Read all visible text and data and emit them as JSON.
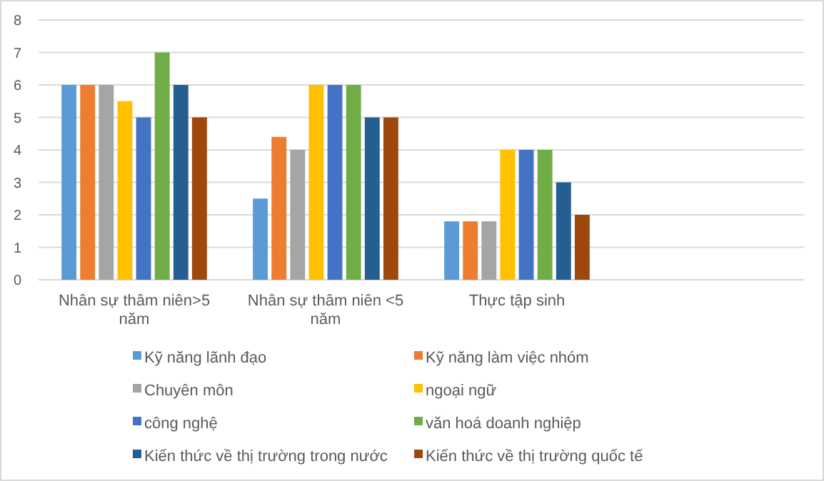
{
  "chart_data": {
    "type": "bar",
    "categories": [
      "Nhân sự thâm niên>5 năm",
      "Nhân sự thâm niên <5 năm",
      "Thực tập sinh",
      null
    ],
    "series": [
      {
        "name": "Kỹ năng lãnh đạo",
        "color": "#5b9bd5",
        "values": [
          6,
          2.5,
          1.8,
          null
        ]
      },
      {
        "name": "Kỹ năng làm việc nhóm",
        "color": "#ed7d31",
        "values": [
          6,
          4.4,
          1.8,
          null
        ]
      },
      {
        "name": "Chuyên môn",
        "color": "#a5a5a5",
        "values": [
          6,
          4,
          1.8,
          null
        ]
      },
      {
        "name": "ngoại ngữ",
        "color": "#ffc000",
        "values": [
          5.5,
          6,
          4,
          null
        ]
      },
      {
        "name": "công nghệ",
        "color": "#4472c4",
        "values": [
          5,
          6,
          4,
          null
        ]
      },
      {
        "name": "văn hoá doanh nghiệp",
        "color": "#70ad47",
        "values": [
          7,
          6,
          4,
          null
        ]
      },
      {
        "name": "Kiến thức về thị trường trong nước",
        "color": "#255e91",
        "values": [
          6,
          5,
          3,
          null
        ]
      },
      {
        "name": "Kiến thức về thị trường quốc tế",
        "color": "#9e480e",
        "values": [
          5,
          5,
          2,
          null
        ]
      }
    ],
    "ylim": [
      0,
      8
    ],
    "yticks": [
      0,
      1,
      2,
      3,
      4,
      5,
      6,
      7,
      8
    ],
    "grid": "y",
    "legend": "bottom"
  }
}
